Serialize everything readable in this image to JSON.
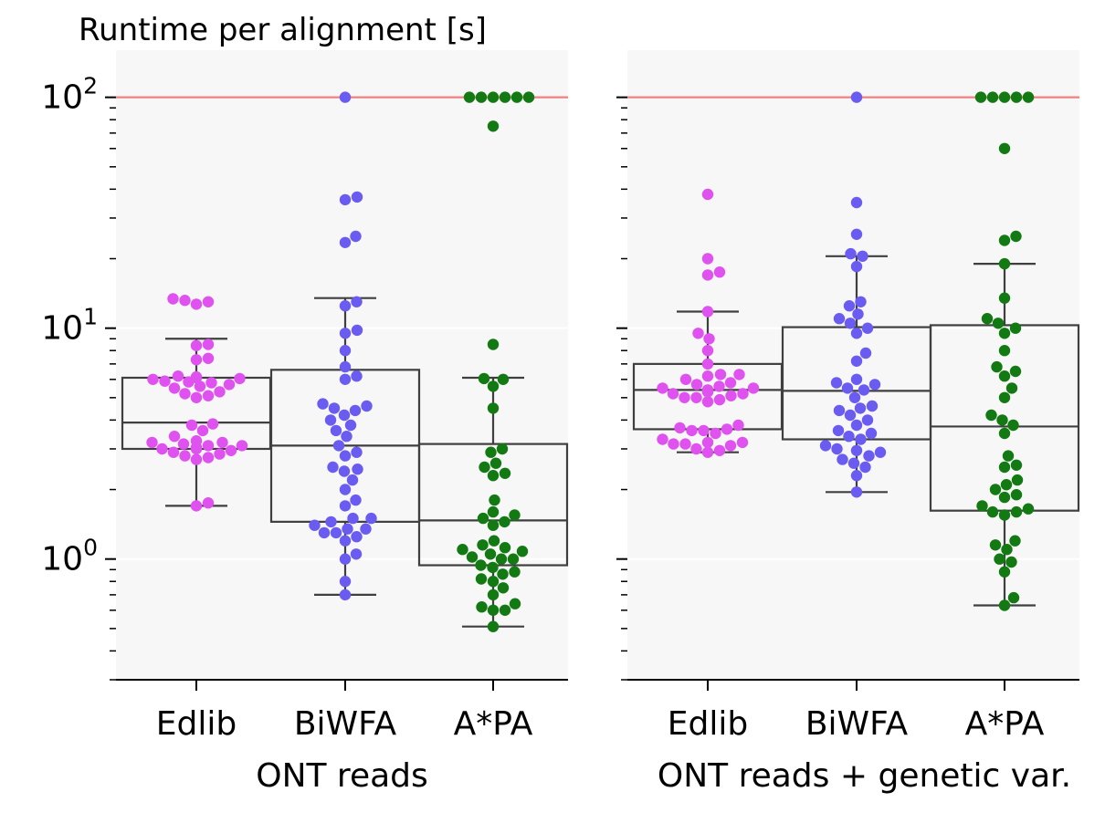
{
  "chart_data": {
    "type": "scatter",
    "title": "Runtime per alignment [s]",
    "y_scale": "log",
    "ylim": [
      0.3,
      160
    ],
    "y_ticks": [
      {
        "value": 1,
        "base": "10",
        "exp": "0"
      },
      {
        "value": 10,
        "base": "10",
        "exp": "1"
      },
      {
        "value": 100,
        "base": "10",
        "exp": "2"
      }
    ],
    "timeout_line": {
      "value": 100,
      "color": "#f08080"
    },
    "grid": "horizontal",
    "colors": {
      "Edlib": "#e052f0",
      "BiWFA": "#6a5cf0",
      "A*PA": "#137a13"
    },
    "panels": [
      {
        "xlabel": "ONT reads",
        "categories": [
          "Edlib",
          "BiWFA",
          "A*PA"
        ],
        "series": [
          {
            "name": "Edlib",
            "box": {
              "whisker_low": 1.7,
              "q1": 3.0,
              "median": 3.9,
              "q3": 6.1,
              "whisker_high": 9.0
            },
            "points": [
              1.7,
              1.75,
              2.7,
              2.75,
              2.8,
              2.85,
              2.9,
              2.95,
              3.0,
              3.0,
              3.05,
              3.1,
              3.1,
              3.15,
              3.2,
              3.2,
              3.25,
              3.4,
              3.6,
              3.8,
              3.85,
              5.0,
              5.1,
              5.2,
              5.3,
              5.5,
              5.6,
              5.7,
              5.8,
              5.85,
              5.9,
              6.0,
              6.05,
              6.1,
              6.15,
              6.2,
              7.3,
              7.4,
              8.4,
              8.5,
              12.7,
              13.0,
              13.2,
              13.4
            ]
          },
          {
            "name": "BiWFA",
            "box": {
              "whisker_low": 0.7,
              "q1": 1.45,
              "median": 3.1,
              "q3": 6.6,
              "whisker_high": 13.5
            },
            "points": [
              0.7,
              0.8,
              1.0,
              1.05,
              1.2,
              1.25,
              1.3,
              1.3,
              1.35,
              1.35,
              1.4,
              1.45,
              1.5,
              1.5,
              1.7,
              1.8,
              2.0,
              2.2,
              2.4,
              2.45,
              2.5,
              2.8,
              2.9,
              3.1,
              3.4,
              3.6,
              3.8,
              4.0,
              4.2,
              4.4,
              4.5,
              4.6,
              4.7,
              6.0,
              6.2,
              6.8,
              8.0,
              9.5,
              9.8,
              12.5,
              13.0,
              23.5,
              25.0,
              36.0,
              37.0,
              100.0
            ]
          },
          {
            "name": "A*PA",
            "box": {
              "whisker_low": 0.51,
              "q1": 0.94,
              "median": 1.47,
              "q3": 3.15,
              "whisker_high": 6.1
            },
            "points": [
              0.51,
              0.6,
              0.6,
              0.62,
              0.64,
              0.7,
              0.75,
              0.8,
              0.82,
              0.86,
              0.88,
              0.92,
              0.94,
              1.0,
              1.0,
              1.02,
              1.05,
              1.08,
              1.1,
              1.12,
              1.15,
              1.2,
              1.4,
              1.45,
              1.5,
              1.55,
              1.6,
              1.8,
              2.3,
              2.35,
              2.5,
              2.6,
              2.9,
              3.0,
              4.5,
              5.6,
              6.0,
              6.05,
              8.5,
              75.0,
              100.0,
              100.0,
              100.0,
              100.0,
              100.0,
              100.0
            ]
          }
        ]
      },
      {
        "xlabel": "ONT reads + genetic var.",
        "categories": [
          "Edlib",
          "BiWFA",
          "A*PA"
        ],
        "series": [
          {
            "name": "Edlib",
            "box": {
              "whisker_low": 2.9,
              "q1": 3.65,
              "median": 5.4,
              "q3": 7.0,
              "whisker_high": 11.8
            },
            "points": [
              2.9,
              2.95,
              3.0,
              3.1,
              3.15,
              3.15,
              3.2,
              3.2,
              3.3,
              3.5,
              3.6,
              3.6,
              3.65,
              3.7,
              3.8,
              4.8,
              4.9,
              5.0,
              5.0,
              5.1,
              5.2,
              5.2,
              5.3,
              5.3,
              5.4,
              5.4,
              5.5,
              5.5,
              5.6,
              5.7,
              5.8,
              6.0,
              6.2,
              6.3,
              6.3,
              7.0,
              8.0,
              9.0,
              9.5,
              11.8,
              17.0,
              17.5,
              20.0,
              38.0
            ]
          },
          {
            "name": "BiWFA",
            "box": {
              "whisker_low": 1.95,
              "q1": 3.3,
              "median": 5.35,
              "q3": 10.1,
              "whisker_high": 20.5
            },
            "points": [
              1.95,
              2.3,
              2.5,
              2.6,
              2.7,
              2.8,
              2.9,
              2.95,
              3.0,
              3.1,
              3.3,
              3.4,
              3.5,
              3.6,
              3.8,
              4.0,
              4.2,
              4.4,
              4.5,
              4.6,
              5.0,
              5.4,
              5.5,
              5.7,
              5.8,
              6.0,
              7.2,
              7.8,
              9.5,
              10.0,
              10.5,
              11.0,
              11.5,
              12.5,
              13.0,
              18.5,
              20.5,
              21.0,
              25.5,
              35.0,
              100.0
            ]
          },
          {
            "name": "A*PA",
            "box": {
              "whisker_low": 0.63,
              "q1": 1.62,
              "median": 3.75,
              "q3": 10.3,
              "whisker_high": 19.0
            },
            "points": [
              0.63,
              0.68,
              0.88,
              0.97,
              1.0,
              1.1,
              1.15,
              1.2,
              1.55,
              1.6,
              1.6,
              1.65,
              1.7,
              1.85,
              1.9,
              2.0,
              2.1,
              2.2,
              2.5,
              2.55,
              2.8,
              3.5,
              3.8,
              4.0,
              4.2,
              5.0,
              5.5,
              6.2,
              6.5,
              6.8,
              8.0,
              9.5,
              10.0,
              10.5,
              11.0,
              13.5,
              19.0,
              24.0,
              25.0,
              60.0,
              100.0,
              100.0,
              100.0,
              100.0,
              100.0
            ]
          }
        ]
      }
    ]
  }
}
